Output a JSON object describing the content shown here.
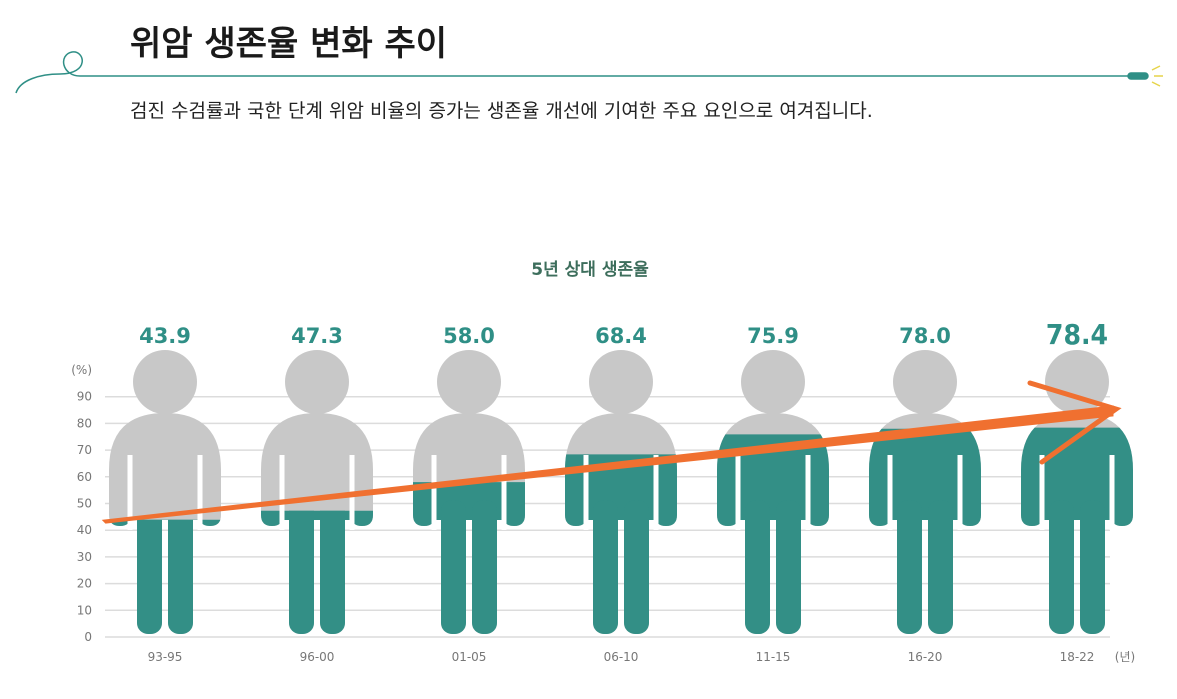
{
  "header": {
    "title": "위암 생존율 변화 추이",
    "subtitle": "검진 수검률과 국한 단계 위암 비율의 증가는 생존율 개선에 기여한 주요 요인으로 여겨집니다."
  },
  "chart_data": {
    "type": "pictogram",
    "title": "5년 상대 생존율",
    "y_unit": "(%)",
    "x_unit": "(년)",
    "categories": [
      "93-95",
      "96-00",
      "01-05",
      "06-10",
      "11-15",
      "16-20",
      "18-22"
    ],
    "values": [
      43.9,
      47.3,
      58.0,
      68.4,
      75.9,
      78.0,
      78.4
    ],
    "value_labels": [
      "43.9",
      "47.3",
      "58.0",
      "68.4",
      "75.9",
      "78.0",
      "78.4"
    ],
    "color": "#338f86",
    "base_color": "#c8c8c8",
    "ylim": [
      0,
      100
    ],
    "yticks": [
      0,
      10,
      20,
      30,
      40,
      50,
      60,
      70,
      80,
      90
    ],
    "grid": true
  }
}
